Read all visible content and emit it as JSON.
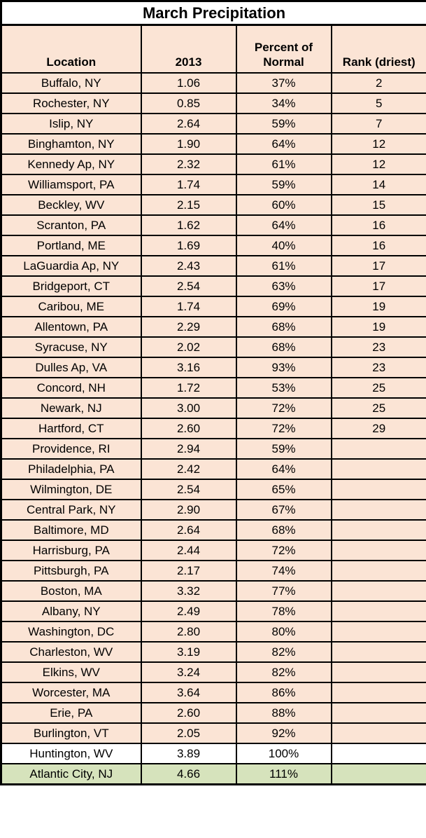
{
  "chart_data": {
    "type": "table",
    "title": "March Precipitation",
    "columns": [
      "Location",
      "2013",
      "Percent of Normal",
      "Rank (driest)"
    ],
    "legend_note_colors": {
      "below_normal_row": "#fbe4d5",
      "near_normal_row": "#ffffff",
      "above_normal_row": "#d6e3bc",
      "border": "#000000",
      "title_bg": "#ffffff",
      "text": "#000000"
    },
    "rows": [
      {
        "location": "Buffalo, NY",
        "value_2013": "1.06",
        "percent_normal": "37%",
        "rank": "2",
        "highlight": "below_normal"
      },
      {
        "location": "Rochester, NY",
        "value_2013": "0.85",
        "percent_normal": "34%",
        "rank": "5",
        "highlight": "below_normal"
      },
      {
        "location": "Islip, NY",
        "value_2013": "2.64",
        "percent_normal": "59%",
        "rank": "7",
        "highlight": "below_normal"
      },
      {
        "location": "Binghamton, NY",
        "value_2013": "1.90",
        "percent_normal": "64%",
        "rank": "12",
        "highlight": "below_normal"
      },
      {
        "location": "Kennedy Ap, NY",
        "value_2013": "2.32",
        "percent_normal": "61%",
        "rank": "12",
        "highlight": "below_normal"
      },
      {
        "location": "Williamsport, PA",
        "value_2013": "1.74",
        "percent_normal": "59%",
        "rank": "14",
        "highlight": "below_normal"
      },
      {
        "location": "Beckley, WV",
        "value_2013": "2.15",
        "percent_normal": "60%",
        "rank": "15",
        "highlight": "below_normal"
      },
      {
        "location": "Scranton, PA",
        "value_2013": "1.62",
        "percent_normal": "64%",
        "rank": "16",
        "highlight": "below_normal"
      },
      {
        "location": "Portland, ME",
        "value_2013": "1.69",
        "percent_normal": "40%",
        "rank": "16",
        "highlight": "below_normal"
      },
      {
        "location": "LaGuardia Ap, NY",
        "value_2013": "2.43",
        "percent_normal": "61%",
        "rank": "17",
        "highlight": "below_normal"
      },
      {
        "location": "Bridgeport, CT",
        "value_2013": "2.54",
        "percent_normal": "63%",
        "rank": "17",
        "highlight": "below_normal"
      },
      {
        "location": "Caribou, ME",
        "value_2013": "1.74",
        "percent_normal": "69%",
        "rank": "19",
        "highlight": "below_normal"
      },
      {
        "location": "Allentown, PA",
        "value_2013": "2.29",
        "percent_normal": "68%",
        "rank": "19",
        "highlight": "below_normal"
      },
      {
        "location": "Syracuse, NY",
        "value_2013": "2.02",
        "percent_normal": "68%",
        "rank": "23",
        "highlight": "below_normal"
      },
      {
        "location": "Dulles Ap, VA",
        "value_2013": "3.16",
        "percent_normal": "93%",
        "rank": "23",
        "highlight": "below_normal"
      },
      {
        "location": "Concord, NH",
        "value_2013": "1.72",
        "percent_normal": "53%",
        "rank": "25",
        "highlight": "below_normal"
      },
      {
        "location": "Newark, NJ",
        "value_2013": "3.00",
        "percent_normal": "72%",
        "rank": "25",
        "highlight": "below_normal"
      },
      {
        "location": "Hartford, CT",
        "value_2013": "2.60",
        "percent_normal": "72%",
        "rank": "29",
        "highlight": "below_normal"
      },
      {
        "location": "Providence, RI",
        "value_2013": "2.94",
        "percent_normal": "59%",
        "rank": "",
        "highlight": "below_normal"
      },
      {
        "location": "Philadelphia, PA",
        "value_2013": "2.42",
        "percent_normal": "64%",
        "rank": "",
        "highlight": "below_normal"
      },
      {
        "location": "Wilmington, DE",
        "value_2013": "2.54",
        "percent_normal": "65%",
        "rank": "",
        "highlight": "below_normal"
      },
      {
        "location": "Central Park, NY",
        "value_2013": "2.90",
        "percent_normal": "67%",
        "rank": "",
        "highlight": "below_normal"
      },
      {
        "location": "Baltimore, MD",
        "value_2013": "2.64",
        "percent_normal": "68%",
        "rank": "",
        "highlight": "below_normal"
      },
      {
        "location": "Harrisburg, PA",
        "value_2013": "2.44",
        "percent_normal": "72%",
        "rank": "",
        "highlight": "below_normal"
      },
      {
        "location": "Pittsburgh, PA",
        "value_2013": "2.17",
        "percent_normal": "74%",
        "rank": "",
        "highlight": "below_normal"
      },
      {
        "location": "Boston, MA",
        "value_2013": "3.32",
        "percent_normal": "77%",
        "rank": "",
        "highlight": "below_normal"
      },
      {
        "location": "Albany, NY",
        "value_2013": "2.49",
        "percent_normal": "78%",
        "rank": "",
        "highlight": "below_normal"
      },
      {
        "location": "Washington, DC",
        "value_2013": "2.80",
        "percent_normal": "80%",
        "rank": "",
        "highlight": "below_normal"
      },
      {
        "location": "Charleston, WV",
        "value_2013": "3.19",
        "percent_normal": "82%",
        "rank": "",
        "highlight": "below_normal"
      },
      {
        "location": "Elkins, WV",
        "value_2013": "3.24",
        "percent_normal": "82%",
        "rank": "",
        "highlight": "below_normal"
      },
      {
        "location": "Worcester, MA",
        "value_2013": "3.64",
        "percent_normal": "86%",
        "rank": "",
        "highlight": "below_normal"
      },
      {
        "location": "Erie, PA",
        "value_2013": "2.60",
        "percent_normal": "88%",
        "rank": "",
        "highlight": "below_normal"
      },
      {
        "location": "Burlington, VT",
        "value_2013": "2.05",
        "percent_normal": "92%",
        "rank": "",
        "highlight": "below_normal"
      },
      {
        "location": "Huntington, WV",
        "value_2013": "3.89",
        "percent_normal": "100%",
        "rank": "",
        "highlight": "near_normal"
      },
      {
        "location": "Atlantic City, NJ",
        "value_2013": "4.66",
        "percent_normal": "111%",
        "rank": "",
        "highlight": "above_normal"
      }
    ]
  }
}
